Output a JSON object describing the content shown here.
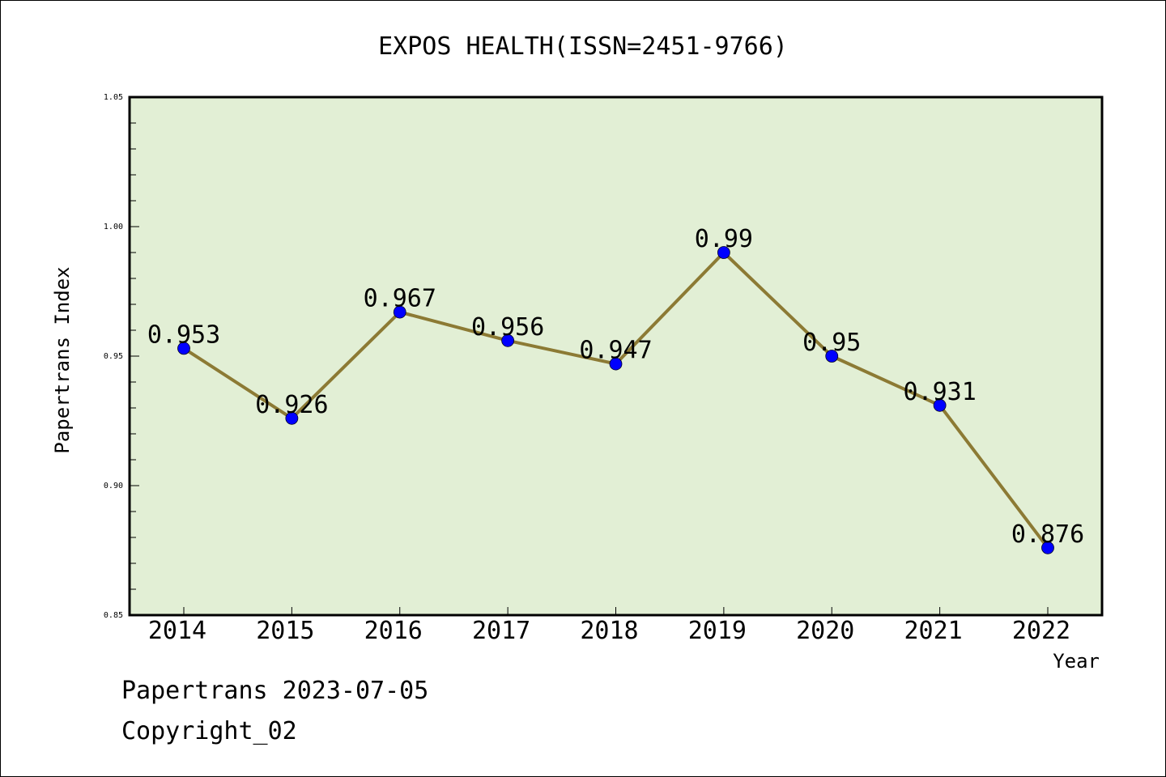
{
  "chart_data": {
    "type": "line",
    "title": "EXPOS HEALTH(ISSN=2451-9766)",
    "xlabel": "Year",
    "ylabel": "Papertrans Index",
    "x": [
      "2014",
      "2015",
      "2016",
      "2017",
      "2018",
      "2019",
      "2020",
      "2021",
      "2022"
    ],
    "series": [
      {
        "values": [
          0.953,
          0.926,
          0.967,
          0.956,
          0.947,
          0.99,
          0.95,
          0.931,
          0.876
        ],
        "data_labels": [
          "0.953",
          "0.926",
          "0.967",
          "0.956",
          "0.947",
          "0.99",
          "0.95",
          "0.931",
          "0.876"
        ]
      }
    ],
    "ylim": [
      0.85,
      1.05
    ],
    "yticks": [
      "0.85",
      "0.90",
      "0.95",
      "1.00",
      "1.05"
    ],
    "grid": false,
    "colors": {
      "plot_background": "#e2efd5",
      "line": "#8c7a34",
      "marker": "#0000ff"
    }
  },
  "footer": {
    "line1": "Papertrans 2023-07-05",
    "line2": "Copyright_02"
  }
}
